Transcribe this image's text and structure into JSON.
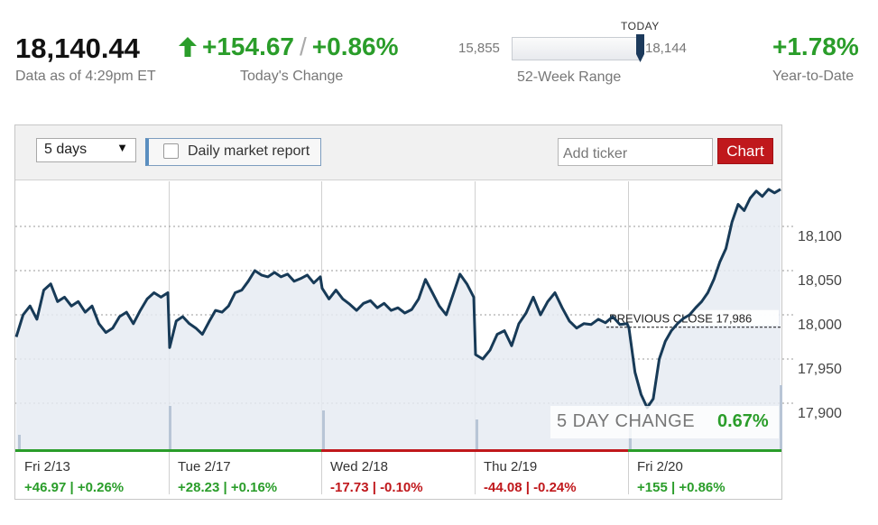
{
  "quote": {
    "price": "18,140.44",
    "as_of": "Data as of 4:29pm ET",
    "change_points": "+154.67",
    "change_sep": "/",
    "change_pct": "+0.86%",
    "change_label": "Today's Change",
    "up_color": "#2a9d2a",
    "down_color": "#c0181c"
  },
  "week52": {
    "low": "15,855",
    "high": "18,144",
    "today_label": "TODAY",
    "label": "52-Week Range",
    "position": 0.998
  },
  "ytd": {
    "value": "+1.78%",
    "label": "Year-to-Date"
  },
  "toolbar": {
    "range_value": "5 days",
    "caret": "▼",
    "report_label": "Daily market report",
    "ticker_placeholder": "Add ticker",
    "chart_button": "Chart"
  },
  "chart_data": {
    "type": "line",
    "ylim": [
      17860,
      18150
    ],
    "y_ticks": [
      {
        "value": 18100,
        "label": "18,100"
      },
      {
        "value": 18050,
        "label": "18,050"
      },
      {
        "value": 18000,
        "label": "18,000"
      },
      {
        "value": 17950,
        "label": "17,950"
      },
      {
        "value": 17900,
        "label": "17,900"
      }
    ],
    "previous_close": {
      "value": 17986,
      "label": "PREVIOUS CLOSE 17,986"
    },
    "five_day_change": {
      "label": "5 DAY CHANGE",
      "value": "0.67%"
    },
    "days": [
      {
        "label": "Fri 2/13",
        "change": "+46.97 | +0.26%",
        "direction": "up",
        "values": [
          17975,
          18000,
          18010,
          17995,
          18028,
          18035,
          18015,
          18020,
          18010,
          18015,
          18003,
          18010,
          17990,
          17980,
          17985,
          17998,
          18003,
          17990,
          18005,
          18018,
          18025,
          18020,
          18025
        ]
      },
      {
        "label": "Tue 2/17",
        "change": "+28.23 | +0.16%",
        "direction": "up",
        "values": [
          17963,
          17993,
          17998,
          17990,
          17985,
          17978,
          17992,
          18005,
          18003,
          18010,
          18025,
          18028,
          18038,
          18050,
          18045,
          18043,
          18048,
          18043,
          18046,
          18038,
          18041,
          18045,
          18036,
          18043
        ]
      },
      {
        "label": "Wed 2/18",
        "change": "-17.73 | -0.10%",
        "direction": "down",
        "values": [
          18030,
          18018,
          18028,
          18018,
          18012,
          18005,
          18013,
          18016,
          18008,
          18013,
          18005,
          18008,
          18002,
          18006,
          18018,
          18040,
          18025,
          18010,
          18000,
          18023,
          18046,
          18035,
          18020
        ]
      },
      {
        "label": "Thu 2/19",
        "change": "-44.08 | -0.24%",
        "direction": "down",
        "values": [
          17955,
          17950,
          17960,
          17978,
          17982,
          17965,
          17990,
          18002,
          18020,
          18000,
          18015,
          18025,
          18008,
          17993,
          17985,
          17990,
          17989,
          17995,
          17991,
          17998,
          17989,
          17990
        ]
      },
      {
        "label": "Fri 2/20",
        "change": "+155 | +0.86%",
        "direction": "up",
        "values": [
          17985,
          17935,
          17910,
          17895,
          17905,
          17950,
          17970,
          17982,
          17990,
          17996,
          18000,
          18008,
          18015,
          18025,
          18040,
          18060,
          18075,
          18105,
          18125,
          18118,
          18132,
          18140,
          18134,
          18142,
          18138,
          18142
        ]
      }
    ]
  }
}
